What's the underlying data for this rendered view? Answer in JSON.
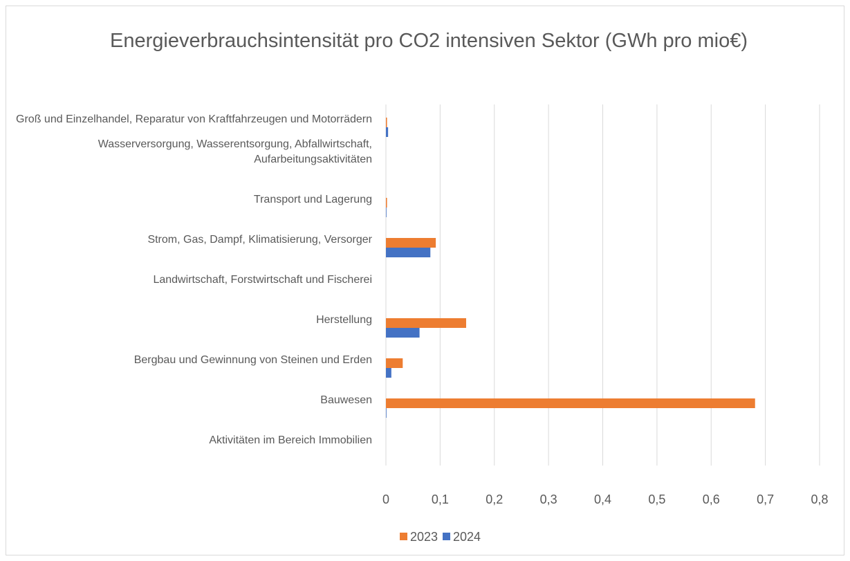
{
  "chart_data": {
    "type": "bar",
    "orientation": "horizontal",
    "title": "Energieverbrauchsintensität pro CO2 intensiven Sektor (GWh pro mio€)",
    "categories": [
      "Groß und Einzelhandel, Reparatur von Kraftfahrzeugen und Motorrädern",
      "Wasserversorgung, Wasserentsorgung, Abfallwirtschaft, Aufarbeitungsaktivitäten",
      "Transport und Lagerung",
      "Strom, Gas, Dampf, Klimatisierung, Versorger",
      "Landwirtschaft, Forstwirtschaft und Fischerei",
      "Herstellung",
      "Bergbau und Gewinnung von Steinen und Erden",
      "Bauwesen",
      "Aktivitäten im Bereich Immobilien"
    ],
    "series": [
      {
        "name": "2023",
        "color": "#ed7d31",
        "values": [
          0.002,
          0,
          0.002,
          0.092,
          0,
          0.148,
          0.031,
          0.681,
          0
        ]
      },
      {
        "name": "2024",
        "color": "#4472c4",
        "values": [
          0.004,
          0,
          0.001,
          0.082,
          0,
          0.062,
          0.01,
          0.001,
          0
        ]
      }
    ],
    "xlim": [
      0,
      0.8
    ],
    "xticks": [
      0,
      {
        "value": 0.1,
        "label": "0,1"
      },
      {
        "value": 0.2,
        "label": "0,2"
      },
      {
        "value": 0.3,
        "label": "0,3"
      },
      {
        "value": 0.4,
        "label": "0,4"
      },
      {
        "value": 0.5,
        "label": "0,5"
      },
      {
        "value": 0.6,
        "label": "0,6"
      },
      {
        "value": 0.7,
        "label": "0,7"
      },
      {
        "value": 0.8,
        "label": "0,8"
      }
    ],
    "grid": true,
    "legend": "bottom"
  }
}
